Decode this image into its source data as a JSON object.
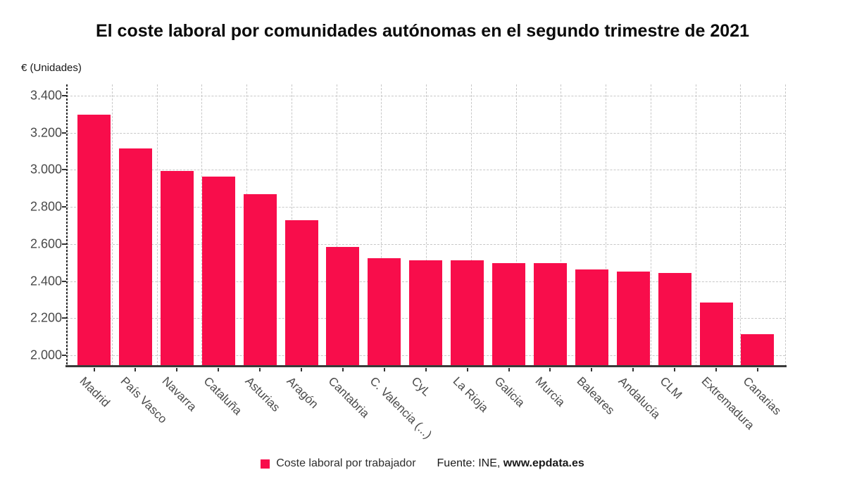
{
  "title": "El coste laboral por comunidades autónomas en el segundo trimestre de 2021",
  "source": {
    "prefix": "Fuente: INE, ",
    "site": "www.epdata.es"
  },
  "legend": {
    "label": "Coste laboral por trabajador",
    "marker": "red-square"
  },
  "colors": {
    "bar": "#F80D4B",
    "grid": "#C8C8C8",
    "axis": "#333333",
    "tick_text": "#4A4A4A",
    "title_text": "#0B0B0B"
  },
  "chart_data": {
    "type": "bar",
    "title": "El coste laboral por comunidades autónomas en el segundo trimestre de 2021",
    "ylabel": "€ (Unidades)",
    "series_name": "Coste laboral por trabajador",
    "categories": [
      "Madrid",
      "País Vasco",
      "Navarra",
      "Cataluña",
      "Asturias",
      "Aragón",
      "Cantabria",
      "C. Valencia (...)",
      "CyL",
      "La Rioja",
      "Galicia",
      "Murcia",
      "Baleares",
      "Andalucía",
      "CLM",
      "Extremadura",
      "Canarias"
    ],
    "values": [
      3297,
      3114,
      2994,
      2965,
      2870,
      2727,
      2583,
      2525,
      2513,
      2511,
      2498,
      2496,
      2462,
      2451,
      2446,
      2285,
      2113
    ],
    "ylim": [
      1940,
      3460
    ],
    "yticks": [
      2000,
      2200,
      2400,
      2600,
      2800,
      3000,
      3200,
      3400
    ],
    "grid": true,
    "legend_position": "bottom",
    "number_format": "es (dot thousands separator)"
  }
}
